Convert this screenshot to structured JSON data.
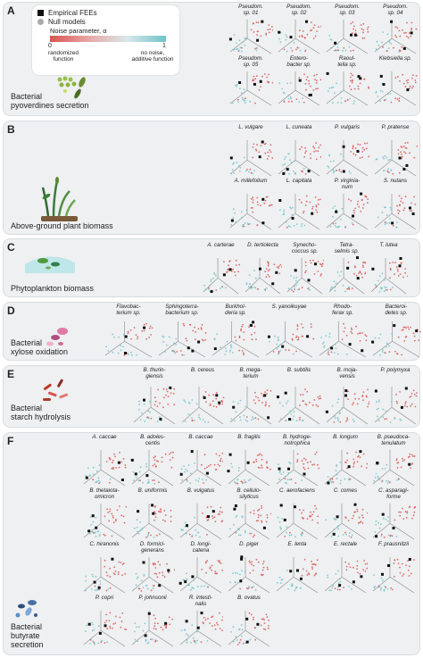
{
  "legend": {
    "empirical": "Empirical FEEs",
    "null_models": "Null models",
    "noise_label": "Noise parameter, α",
    "tick_min": "0",
    "tick_max": "1",
    "left_note": "randomized\nfunction",
    "right_note": "no noise,\nadditive function",
    "colors": {
      "red": "#d9534f",
      "teal": "#6ec3c9",
      "grey": "#aaaaaa"
    }
  },
  "panels": [
    {
      "id": "A",
      "title": "Bacterial\npyoverdines secretion",
      "icon": "bacteria-cluster-icon",
      "items": [
        "Pseudom.\nsp. 01",
        "Pseudom.\nsp. 02",
        "Pseudom.\nsp. 03",
        "Pseudom.\nsp. 04",
        "Pseudom.\nsp. 05",
        "Entero-\nbacter sp.",
        "Raoul-\ntella sp.",
        "Klebsiella sp."
      ]
    },
    {
      "id": "B",
      "title": "Above-ground plant biomass",
      "icon": "plant-icon",
      "items": [
        "L. vulgare",
        "L. cuneata",
        "P. vulgaris",
        "P. pratense",
        "A. millefolium",
        "L. capitata",
        "P. virginia-\nnum",
        "S. nutans"
      ]
    },
    {
      "id": "C",
      "title": "Phytoplankton biomass",
      "icon": "phytoplankton-icon",
      "items": [
        "A. carterae",
        "D. tertiolecta",
        "Synecho-\ncoccus sp.",
        "Tetra-\nselmis sp.",
        "T. lutea"
      ]
    },
    {
      "id": "D",
      "title": "Bacterial\nxylose oxidation",
      "icon": "bacteria-icon",
      "items": [
        "Flavobac-\nterium sp.",
        "Sphingoterra-\nbacterium sp.",
        "Burkhol-\nderia sp.",
        "S. yanoikuyae",
        "Rhodo-\nferax sp.",
        "Bacteroi-\ndetes sp."
      ]
    },
    {
      "id": "E",
      "title": "Bacterial\nstarch hydrolysis",
      "icon": "rod-bacteria-icon",
      "items": [
        "B. thurin-\ngiensis",
        "B. cereus",
        "B. mega-\nterium",
        "B. subtilis",
        "B. moja-\nvensis",
        "P. polymyxa"
      ]
    },
    {
      "id": "F",
      "title": "Bacterial\nbutyrate\nsecretion",
      "icon": "gut-bacteria-icon",
      "items": [
        "A. caccae",
        "B. adoles-\ncentis",
        "B. caccae",
        "B. fragilis",
        "B. hydroge-\nnotrophica",
        "B. longum",
        "B. pseudoca-\ntenulatum",
        "B. thetaiota-\nomicron",
        "B. uniformis",
        "B. vulgatus",
        "B. cellulo-\nsilyticus",
        "C. aerofaciens",
        "C. comes",
        "C. asparagi-\nforme",
        "C. hiranonis",
        "D. formici-\ngenerans",
        "D. longi-\ncatena",
        "D. piger",
        "E. lenta",
        "E. rectale",
        "F. prausnitzii",
        "P. copri",
        "P. johnsonii",
        "R. intesti-\nnalis",
        "B. ovatus"
      ]
    }
  ]
}
